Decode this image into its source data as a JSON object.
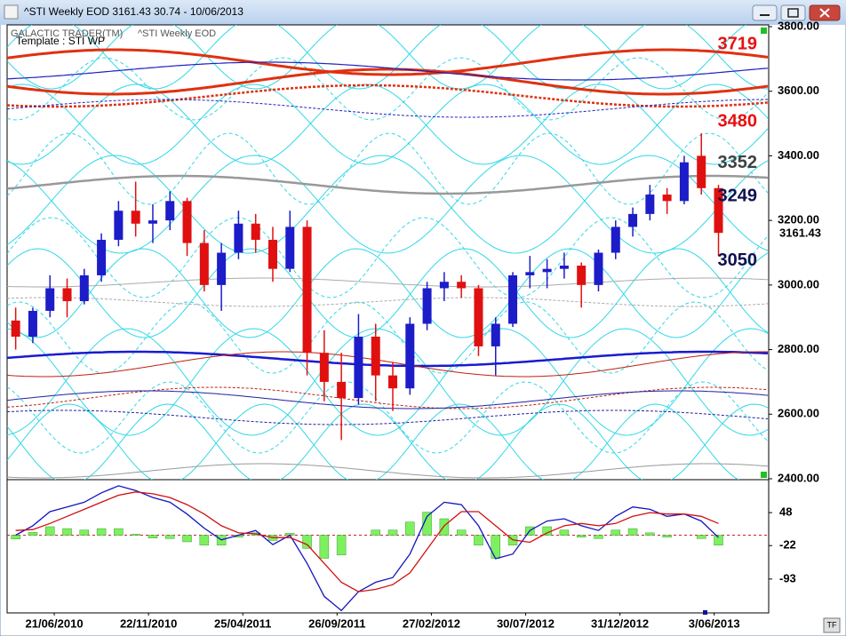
{
  "window": {
    "title": "^STI Weekly EOD  3161.43    30.74 - 10/06/2013",
    "button": "TF"
  },
  "chart_data": [
    {
      "type": "candlestick",
      "source": "GALACTIC TRADER(TM)",
      "symbol": "^STI Weekly EOD",
      "template": "Template : STI WP",
      "x": [
        "19/04/2010",
        "17/05/2010",
        "14/06/2010",
        "12/07/2010",
        "09/08/2010",
        "06/09/2010",
        "04/10/2010",
        "01/11/2010",
        "29/11/2010",
        "27/12/2010",
        "24/01/2011",
        "21/02/2011",
        "21/03/2011",
        "18/04/2011",
        "16/05/2011",
        "13/06/2011",
        "11/07/2011",
        "08/08/2011",
        "05/09/2011",
        "03/10/2011",
        "31/10/2011",
        "28/11/2011",
        "26/12/2011",
        "23/01/2012",
        "20/02/2012",
        "19/03/2012",
        "16/04/2012",
        "14/05/2012",
        "11/06/2012",
        "09/07/2012",
        "06/08/2012",
        "03/09/2012",
        "01/10/2012",
        "29/10/2012",
        "26/11/2012",
        "24/12/2012",
        "21/01/2013",
        "18/02/2013",
        "18/03/2013",
        "15/04/2013",
        "13/05/2013",
        "10/06/2013"
      ],
      "open": [
        2890,
        2840,
        2920,
        2990,
        2950,
        3030,
        3140,
        3230,
        3190,
        3200,
        3260,
        3130,
        3000,
        3100,
        3190,
        3140,
        3050,
        3180,
        2790,
        2700,
        2650,
        2840,
        2720,
        2680,
        2880,
        2990,
        3010,
        2990,
        2810,
        2880,
        3030,
        3040,
        3050,
        3060,
        3000,
        3100,
        3180,
        3220,
        3280,
        3260,
        3400,
        3300
      ],
      "high": [
        2930,
        2930,
        3030,
        3020,
        3050,
        3160,
        3260,
        3320,
        3250,
        3290,
        3270,
        3170,
        3130,
        3230,
        3220,
        3180,
        3230,
        3200,
        2860,
        2790,
        2910,
        2880,
        2760,
        2900,
        3010,
        3040,
        3030,
        3000,
        2900,
        3040,
        3090,
        3080,
        3100,
        3070,
        3110,
        3200,
        3240,
        3310,
        3300,
        3400,
        3470,
        3310
      ],
      "low": [
        2800,
        2820,
        2900,
        2900,
        2940,
        3010,
        3120,
        3150,
        3130,
        3170,
        3090,
        2980,
        2920,
        3080,
        3100,
        3010,
        3040,
        2720,
        2640,
        2520,
        2630,
        2640,
        2610,
        2660,
        2860,
        2950,
        2960,
        2780,
        2720,
        2870,
        2990,
        2990,
        3020,
        2930,
        2980,
        3080,
        3150,
        3200,
        3220,
        3250,
        3280,
        3090
      ],
      "close": [
        2840,
        2920,
        2990,
        2950,
        3030,
        3140,
        3230,
        3190,
        3200,
        3260,
        3130,
        3000,
        3100,
        3190,
        3140,
        3050,
        3180,
        2790,
        2700,
        2650,
        2840,
        2720,
        2680,
        2880,
        2990,
        3010,
        2990,
        2810,
        2880,
        3030,
        3040,
        3050,
        3060,
        3000,
        3100,
        3180,
        3220,
        3280,
        3260,
        3380,
        3300,
        3161.43
      ],
      "up_color": "#1c1cc8",
      "down_color": "#e01010",
      "xlim": [
        "05/04/2010",
        "31/08/2013"
      ],
      "ylim": [
        2400,
        3800
      ],
      "yticks": [
        {
          "value": 2400,
          "label": "2400.00"
        },
        {
          "value": 2600,
          "label": "2600.00"
        },
        {
          "value": 2800,
          "label": "2800.00"
        },
        {
          "value": 3000,
          "label": "3000.00"
        },
        {
          "value": 3200,
          "label": "3200.00"
        },
        {
          "value": 3400,
          "label": "3400.00"
        },
        {
          "value": 3600,
          "label": "3600.00"
        },
        {
          "value": 3800,
          "label": "3800.00"
        }
      ],
      "annotations": [
        {
          "value": 3719,
          "color": "#e81010"
        },
        {
          "value": 3480,
          "color": "#e81010"
        },
        {
          "value": 3352,
          "color": "#404040"
        },
        {
          "value": 3249,
          "color": "#101050"
        },
        {
          "value": 3050,
          "color": "#101050"
        }
      ]
    },
    {
      "type": "macd",
      "histogram": {
        "color": "#7ef060",
        "values": [
          -8,
          6,
          18,
          14,
          11,
          14,
          14,
          2,
          -6,
          -7,
          -14,
          -21,
          -21,
          -4,
          5,
          -11,
          4,
          -28,
          -49,
          -42,
          0,
          11,
          11,
          28,
          49,
          35,
          11,
          -21,
          -49,
          -21,
          18,
          18,
          11,
          -4,
          -7,
          11,
          14,
          5,
          -4,
          0,
          -7,
          -21
        ]
      },
      "series": [
        {
          "color": "#1414c0",
          "values": [
            0,
            20,
            50,
            60,
            70,
            90,
            105,
            95,
            80,
            70,
            45,
            15,
            -10,
            0,
            10,
            -20,
            0,
            -60,
            -130,
            -160,
            -120,
            -100,
            -90,
            -40,
            40,
            70,
            65,
            20,
            -50,
            -40,
            10,
            30,
            35,
            20,
            10,
            40,
            60,
            55,
            40,
            45,
            30,
            -5
          ]
        },
        {
          "color": "#d01010",
          "values": [
            10,
            12,
            25,
            40,
            55,
            70,
            85,
            92,
            88,
            80,
            65,
            45,
            20,
            5,
            3,
            -5,
            -5,
            -20,
            -60,
            -100,
            -120,
            -115,
            -105,
            -80,
            -30,
            20,
            50,
            50,
            20,
            -10,
            -15,
            5,
            20,
            25,
            20,
            25,
            40,
            48,
            45,
            45,
            40,
            25
          ]
        }
      ],
      "ylim": [
        -165,
        118
      ],
      "yticks": [
        48,
        -22,
        -93
      ],
      "xticks": [
        "21/06/2010",
        "22/11/2010",
        "25/04/2011",
        "26/09/2011",
        "27/02/2012",
        "30/07/2012",
        "31/12/2012",
        "3/06/2013"
      ]
    }
  ]
}
